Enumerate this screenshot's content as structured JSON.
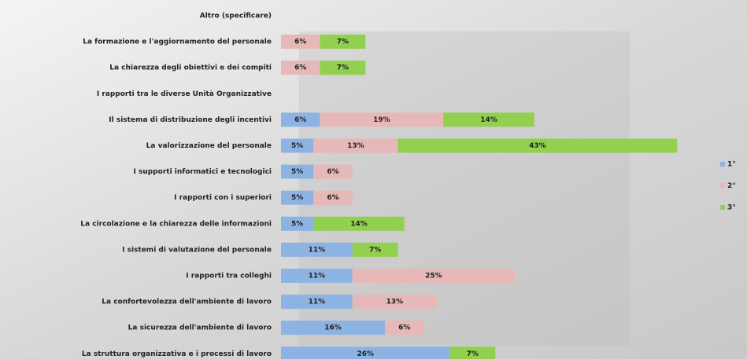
{
  "chart_data": {
    "type": "stacked-bar-horizontal",
    "categories": [
      "Altro (specificare)",
      "La formazione e l'aggiornamento del personale",
      "La chiarezza degli obiettivi e dei compiti",
      "I rapporti tra le diverse Unità Organizzative",
      "Il sistema di distribuzione degli incentivi",
      "La valorizzazione del personale",
      "I supporti informatici e tecnologici",
      "I rapporti con i superiori",
      "La circolazione e la chiarezza delle informazioni",
      "I sistemi di valutazione del personale",
      "I rapporti tra colleghi",
      "La confortevolezza dell'ambiente di lavoro",
      "La sicurezza dell'ambiente di lavoro",
      "La struttura organizzativa e i processi di lavoro"
    ],
    "series": [
      {
        "name": "1°",
        "color": "#8db3e2",
        "values": [
          null,
          null,
          null,
          null,
          6,
          5,
          5,
          5,
          5,
          11,
          11,
          11,
          16,
          26
        ],
        "value_labels": [
          null,
          null,
          null,
          null,
          "6%",
          "5%",
          "5%",
          "5%",
          "5%",
          "11%",
          "11%",
          "11%",
          "16%",
          "26%"
        ]
      },
      {
        "name": "2°",
        "color": "#e6b9b8",
        "values": [
          null,
          6,
          6,
          null,
          19,
          13,
          6,
          6,
          null,
          null,
          25,
          13,
          6,
          null
        ],
        "value_labels": [
          null,
          "6%",
          "6%",
          null,
          "19%",
          "13%",
          "6%",
          "6%",
          null,
          null,
          "25%",
          "13%",
          "6%",
          null
        ]
      },
      {
        "name": "3°",
        "color": "#92d050",
        "values": [
          null,
          7,
          7,
          null,
          14,
          43,
          null,
          null,
          14,
          7,
          null,
          null,
          null,
          7
        ],
        "value_labels": [
          null,
          "7%",
          "7%",
          null,
          "14%",
          "43%",
          null,
          null,
          "14%",
          "7%",
          null,
          null,
          null,
          "7%"
        ]
      }
    ],
    "legend": "right"
  }
}
